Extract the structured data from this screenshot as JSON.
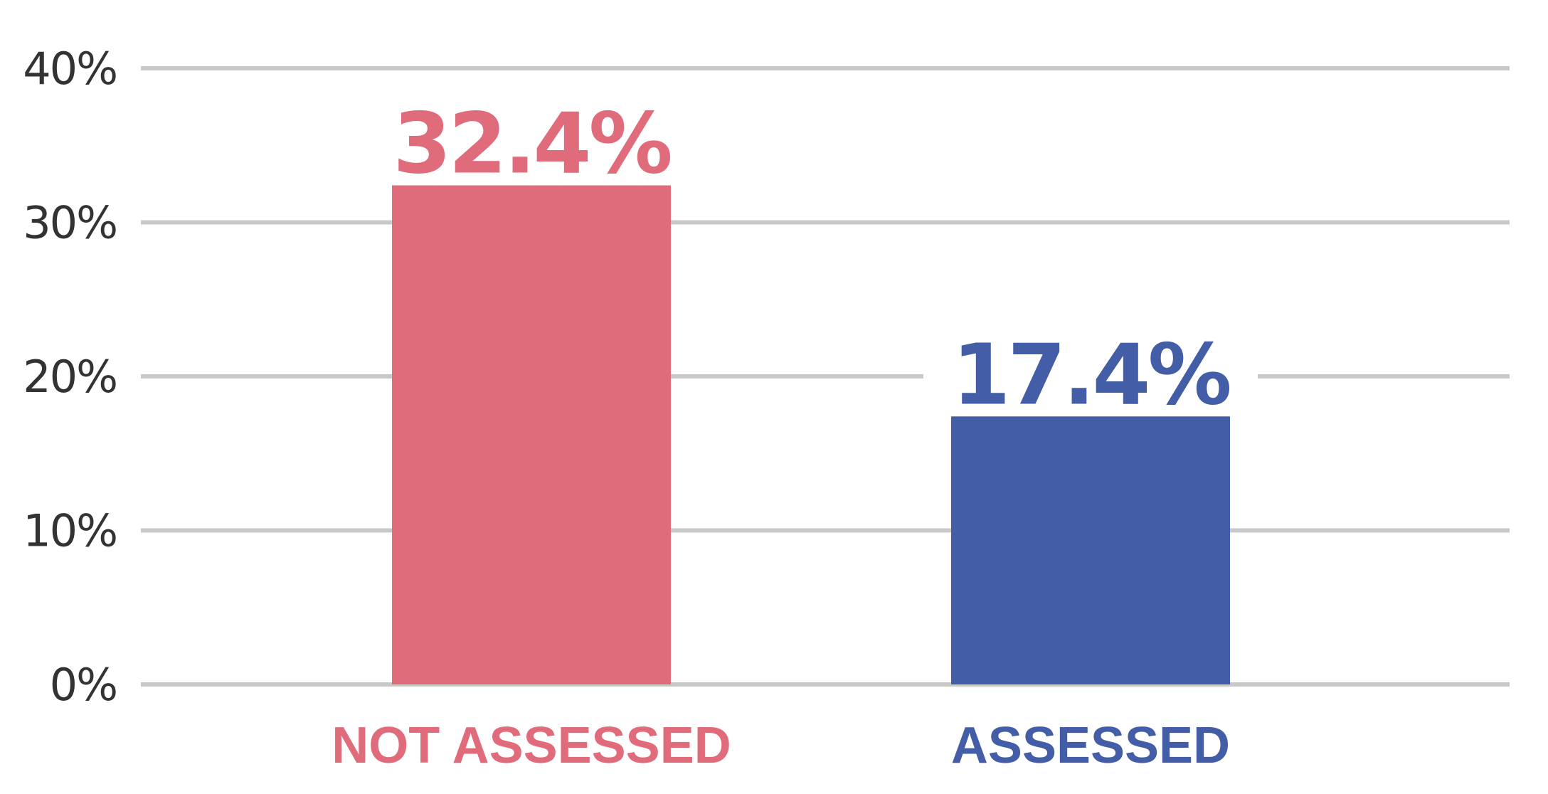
{
  "chart_data": {
    "type": "bar",
    "categories": [
      "NOT ASSESSED",
      "ASSESSED"
    ],
    "values": [
      32.4,
      17.4
    ],
    "value_labels": [
      "32.4%",
      "17.4%"
    ],
    "bar_colors": [
      "#e06c7b",
      "#435da6"
    ],
    "ylim": [
      0,
      40
    ],
    "yticks": [
      0,
      10,
      20,
      30,
      40
    ],
    "ytick_labels": [
      "0%",
      "10%",
      "20%",
      "30%",
      "40%"
    ],
    "grid": true,
    "grid_color": "#c8c8c8",
    "tick_label_color": "#333333",
    "legend": "none"
  }
}
